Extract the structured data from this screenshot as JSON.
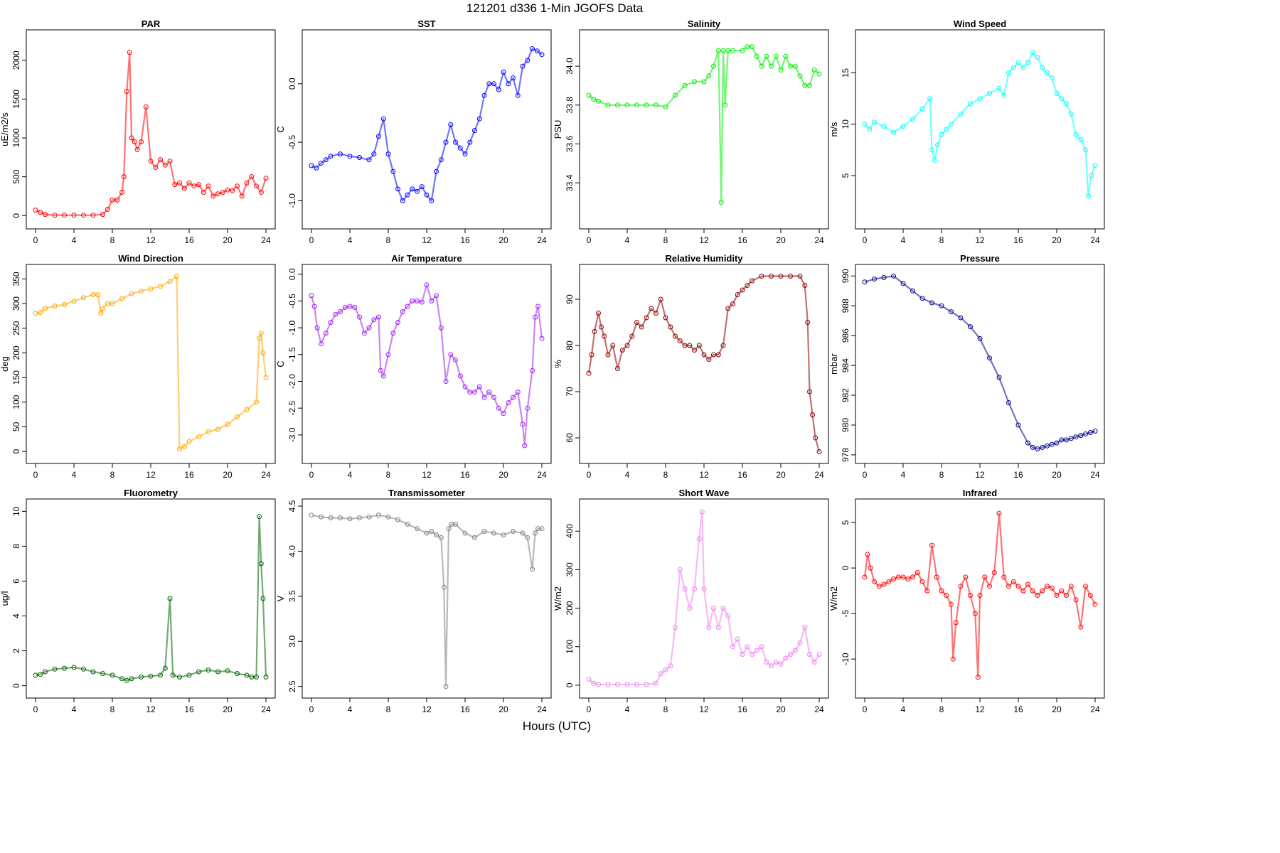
{
  "title": "121201   d336   1-Min  JGOFS Data",
  "x_axis_label": "Hours (UTC)",
  "chart_data": [
    {
      "type": "scatter",
      "title": "PAR",
      "ylabel": "uE/m2/s",
      "color": "#ff0000",
      "xlim": [
        0,
        24
      ],
      "ylim": [
        -80,
        2300
      ],
      "yticks": [
        0,
        500,
        1000,
        1500,
        2000
      ],
      "xticks": [
        0,
        4,
        8,
        12,
        16,
        20,
        24
      ],
      "x": [
        0,
        0.5,
        1,
        2,
        3,
        4,
        5,
        6,
        7,
        7.5,
        8,
        8.5,
        9,
        9.2,
        9.5,
        9.8,
        10,
        10.3,
        10.6,
        11,
        11.5,
        12,
        12.5,
        13,
        13.5,
        14,
        14.5,
        15,
        15.5,
        16,
        16.5,
        17,
        17.5,
        18,
        18.5,
        19,
        19.5,
        20,
        20.5,
        21,
        21.5,
        22,
        22.5,
        23,
        23.5,
        24
      ],
      "y": [
        70,
        40,
        15,
        5,
        5,
        5,
        5,
        5,
        15,
        80,
        200,
        200,
        300,
        500,
        1600,
        2100,
        1000,
        950,
        850,
        950,
        1400,
        700,
        620,
        720,
        650,
        700,
        400,
        420,
        350,
        420,
        380,
        400,
        300,
        380,
        250,
        280,
        300,
        330,
        320,
        380,
        250,
        420,
        500,
        380,
        300,
        480
      ]
    },
    {
      "type": "scatter",
      "title": "SST",
      "ylabel": "C",
      "color": "#0000ff",
      "xlim": [
        0,
        24
      ],
      "ylim": [
        -1.18,
        0.4
      ],
      "yticks": [
        -1.0,
        -0.5,
        0.0
      ],
      "xticks": [
        0,
        4,
        8,
        12,
        16,
        20,
        24
      ],
      "x": [
        0,
        0.5,
        1,
        1.5,
        2,
        3,
        4,
        5,
        6,
        6.5,
        7,
        7.5,
        8,
        8.5,
        9,
        9.5,
        10,
        10.5,
        11,
        11.5,
        12,
        12.5,
        13,
        13.5,
        14,
        14.5,
        15,
        15.5,
        16,
        16.5,
        17,
        17.5,
        18,
        18.5,
        19,
        19.5,
        20,
        20.5,
        21,
        21.5,
        22,
        22.5,
        23,
        23.5,
        24
      ],
      "y": [
        -0.7,
        -0.72,
        -0.68,
        -0.65,
        -0.62,
        -0.6,
        -0.62,
        -0.63,
        -0.65,
        -0.6,
        -0.45,
        -0.3,
        -0.6,
        -0.75,
        -0.9,
        -1.0,
        -0.95,
        -0.9,
        -0.92,
        -0.88,
        -0.95,
        -1.0,
        -0.75,
        -0.65,
        -0.5,
        -0.35,
        -0.5,
        -0.55,
        -0.6,
        -0.5,
        -0.4,
        -0.3,
        -0.1,
        0.0,
        0.0,
        -0.05,
        0.1,
        0.0,
        0.05,
        -0.1,
        0.15,
        0.2,
        0.3,
        0.28,
        0.25
      ]
    },
    {
      "type": "scatter",
      "title": "Salinity",
      "ylabel": "PSU",
      "color": "#00ee00",
      "xlim": [
        0,
        24
      ],
      "ylim": [
        33.2,
        34.15
      ],
      "yticks": [
        33.4,
        33.6,
        33.8,
        34.0
      ],
      "xticks": [
        0,
        4,
        8,
        12,
        16,
        20,
        24
      ],
      "x": [
        0,
        0.5,
        1,
        2,
        3,
        4,
        5,
        6,
        7,
        8,
        9,
        10,
        11,
        12,
        12.5,
        13,
        13.5,
        13.8,
        14,
        14.2,
        14.5,
        15,
        16,
        16.5,
        17,
        17.5,
        18,
        18.5,
        19,
        19.5,
        20,
        20.5,
        21,
        21.5,
        22,
        22.5,
        23,
        23.5,
        24
      ],
      "y": [
        33.85,
        33.83,
        33.82,
        33.8,
        33.8,
        33.8,
        33.8,
        33.8,
        33.8,
        33.79,
        33.85,
        33.9,
        33.92,
        33.92,
        33.95,
        34.0,
        34.08,
        33.3,
        34.08,
        33.8,
        34.08,
        34.08,
        34.08,
        34.1,
        34.1,
        34.05,
        34.0,
        34.05,
        34.0,
        34.05,
        33.98,
        34.05,
        34.0,
        34.0,
        33.95,
        33.9,
        33.9,
        33.98,
        33.96
      ]
    },
    {
      "type": "scatter",
      "title": "Wind Speed",
      "ylabel": "m/s",
      "color": "#00ffff",
      "xlim": [
        0,
        24
      ],
      "ylim": [
        0.5,
        18.5
      ],
      "yticks": [
        5,
        10,
        15
      ],
      "xticks": [
        0,
        4,
        8,
        12,
        16,
        20,
        24
      ],
      "x": [
        0,
        0.5,
        1,
        2,
        3,
        4,
        5,
        6,
        6.8,
        7,
        7.3,
        7.6,
        8,
        8.5,
        9,
        10,
        11,
        12,
        13,
        14,
        14.5,
        15,
        15.5,
        16,
        16.5,
        17,
        17.5,
        18,
        18.5,
        19,
        19.5,
        20,
        20.5,
        21,
        21.5,
        22,
        22.5,
        23,
        23.3,
        23.6,
        24
      ],
      "y": [
        10,
        9.5,
        10.2,
        9.8,
        9.2,
        9.8,
        10.5,
        11.5,
        12.5,
        7.5,
        6.5,
        8,
        9,
        9.5,
        10,
        11,
        12,
        12.5,
        13,
        13.5,
        12.8,
        15,
        15.5,
        16,
        15.5,
        16,
        17,
        16.5,
        15.5,
        15,
        14.5,
        13,
        12.5,
        12,
        11,
        9,
        8.5,
        7.5,
        3,
        5,
        6
      ]
    },
    {
      "type": "scatter",
      "title": "Wind Direction",
      "ylabel": "deg",
      "color": "#ffa500",
      "xlim": [
        0,
        24
      ],
      "ylim": [
        -10,
        365
      ],
      "yticks": [
        0,
        50,
        100,
        150,
        200,
        250,
        300,
        350
      ],
      "xticks": [
        0,
        4,
        8,
        12,
        16,
        20,
        24
      ],
      "x": [
        0,
        0.5,
        1,
        2,
        3,
        4,
        5,
        6,
        6.5,
        6.8,
        7,
        7.5,
        8,
        9,
        10,
        11,
        12,
        13,
        14,
        14.7,
        15,
        15.5,
        16,
        17,
        18,
        19,
        20,
        21,
        22,
        23,
        23.3,
        23.5,
        23.7,
        24
      ],
      "y": [
        280,
        282,
        290,
        295,
        298,
        305,
        312,
        318,
        318,
        280,
        290,
        300,
        300,
        310,
        320,
        325,
        330,
        335,
        345,
        355,
        5,
        10,
        20,
        30,
        40,
        45,
        55,
        70,
        85,
        100,
        230,
        240,
        200,
        150
      ]
    },
    {
      "type": "scatter",
      "title": "Air Temperature",
      "ylabel": "C",
      "color": "#a020f0",
      "xlim": [
        0,
        24
      ],
      "ylim": [
        -3.4,
        0.05
      ],
      "yticks": [
        -3.0,
        -2.5,
        -2.0,
        -1.5,
        -1.0,
        -0.5,
        0.0
      ],
      "xticks": [
        0,
        4,
        8,
        12,
        16,
        20,
        24
      ],
      "x": [
        0,
        0.3,
        0.6,
        1,
        1.5,
        2,
        2.5,
        3,
        3.5,
        4,
        4.5,
        5,
        5.5,
        6,
        6.5,
        7,
        7.2,
        7.5,
        8,
        8.5,
        9,
        9.5,
        10,
        10.5,
        11,
        11.5,
        12,
        12.5,
        13,
        13.5,
        14,
        14.5,
        15,
        15.5,
        16,
        16.5,
        17,
        17.5,
        18,
        18.5,
        19,
        19.5,
        20,
        20.5,
        21,
        21.5,
        22,
        22.2,
        22.5,
        23,
        23.3,
        23.6,
        24
      ],
      "y": [
        -0.4,
        -0.6,
        -1.0,
        -1.3,
        -1.1,
        -0.9,
        -0.75,
        -0.7,
        -0.62,
        -0.6,
        -0.62,
        -0.8,
        -1.1,
        -1.0,
        -0.85,
        -0.8,
        -1.8,
        -1.9,
        -1.5,
        -1.1,
        -0.9,
        -0.7,
        -0.6,
        -0.5,
        -0.5,
        -0.52,
        -0.2,
        -0.5,
        -0.4,
        -1.0,
        -2.0,
        -1.5,
        -1.6,
        -1.9,
        -2.1,
        -2.2,
        -2.2,
        -2.1,
        -2.3,
        -2.2,
        -2.3,
        -2.5,
        -2.6,
        -2.4,
        -2.3,
        -2.2,
        -2.8,
        -3.2,
        -2.5,
        -1.8,
        -0.8,
        -0.6,
        -1.2
      ]
    },
    {
      "type": "scatter",
      "title": "Relative Humidity",
      "ylabel": "%",
      "color": "#8b0000",
      "xlim": [
        0,
        24
      ],
      "ylim": [
        56,
        96
      ],
      "yticks": [
        60,
        70,
        80,
        90
      ],
      "xticks": [
        0,
        4,
        8,
        12,
        16,
        20,
        24
      ],
      "x": [
        0,
        0.3,
        0.6,
        1,
        1.3,
        1.6,
        2,
        2.5,
        3,
        3.5,
        4,
        4.5,
        5,
        5.5,
        6,
        6.5,
        7,
        7.5,
        8,
        8.5,
        9,
        9.5,
        10,
        10.5,
        11,
        11.5,
        12,
        12.5,
        13,
        13.5,
        14,
        14.5,
        15,
        15.5,
        16,
        16.5,
        17,
        18,
        19,
        20,
        21,
        22,
        22.5,
        22.8,
        23,
        23.3,
        23.6,
        24
      ],
      "y": [
        74,
        78,
        83,
        87,
        84,
        82,
        78,
        80,
        75,
        79,
        80,
        82,
        85,
        84,
        86,
        88,
        87,
        90,
        86,
        84,
        82,
        81,
        80,
        80,
        79,
        80,
        78,
        77,
        78,
        78,
        80,
        88,
        89,
        91,
        92,
        93,
        94,
        95,
        95,
        95,
        95,
        95,
        93,
        85,
        70,
        65,
        60,
        57
      ]
    },
    {
      "type": "scatter",
      "title": "Pressure",
      "ylabel": "mbar",
      "color": "#00008b",
      "xlim": [
        0,
        24
      ],
      "ylim": [
        977.9,
        990.3
      ],
      "yticks": [
        978,
        980,
        982,
        984,
        986,
        988,
        990
      ],
      "xticks": [
        0,
        4,
        8,
        12,
        16,
        20,
        24
      ],
      "x": [
        0,
        1,
        2,
        3,
        4,
        5,
        6,
        7,
        8,
        9,
        10,
        11,
        12,
        13,
        14,
        15,
        16,
        17,
        17.5,
        18,
        18.5,
        19,
        19.5,
        20,
        20.5,
        21,
        21.5,
        22,
        22.5,
        23,
        23.5,
        24
      ],
      "y": [
        989.6,
        989.8,
        989.9,
        990.0,
        989.5,
        989.0,
        988.5,
        988.2,
        988.0,
        987.6,
        987.2,
        986.6,
        985.8,
        984.5,
        983.2,
        981.5,
        980.0,
        978.8,
        978.5,
        978.4,
        978.5,
        978.6,
        978.7,
        978.8,
        979.0,
        979.0,
        979.1,
        979.2,
        979.3,
        979.4,
        979.5,
        979.6
      ]
    },
    {
      "type": "scatter",
      "title": "Fluorometry",
      "ylabel": "ug/l",
      "color": "#006400",
      "xlim": [
        0,
        24
      ],
      "ylim": [
        -0.3,
        10.3
      ],
      "yticks": [
        0,
        2,
        4,
        6,
        8,
        10
      ],
      "xticks": [
        0,
        4,
        8,
        12,
        16,
        20,
        24
      ],
      "x": [
        0,
        0.5,
        1,
        2,
        3,
        4,
        5,
        6,
        7,
        8,
        9,
        9.5,
        10,
        11,
        12,
        13,
        13.5,
        14,
        14.3,
        15,
        16,
        17,
        18,
        19,
        20,
        21,
        22,
        22.5,
        23,
        23.3,
        23.5,
        23.7,
        24
      ],
      "y": [
        0.6,
        0.65,
        0.8,
        0.95,
        1.0,
        1.05,
        0.95,
        0.8,
        0.7,
        0.6,
        0.4,
        0.3,
        0.4,
        0.5,
        0.55,
        0.6,
        1.0,
        5.0,
        0.6,
        0.5,
        0.6,
        0.8,
        0.9,
        0.8,
        0.85,
        0.7,
        0.6,
        0.5,
        0.5,
        9.7,
        7.0,
        5.0,
        0.5
      ]
    },
    {
      "type": "scatter",
      "title": "Transmissometer",
      "ylabel": "V",
      "color": "#808080",
      "xlim": [
        0,
        24
      ],
      "ylim": [
        2.45,
        4.5
      ],
      "yticks": [
        2.5,
        3.0,
        3.5,
        4.0,
        4.5
      ],
      "xticks": [
        0,
        4,
        8,
        12,
        16,
        20,
        24
      ],
      "x": [
        0,
        1,
        2,
        3,
        4,
        5,
        6,
        7,
        8,
        9,
        10,
        11,
        12,
        12.5,
        13,
        13.5,
        13.8,
        14,
        14.3,
        14.6,
        15,
        16,
        17,
        18,
        19,
        20,
        21,
        22,
        22.5,
        23,
        23.3,
        23.6,
        24
      ],
      "y": [
        4.4,
        4.38,
        4.37,
        4.37,
        4.36,
        4.37,
        4.38,
        4.4,
        4.38,
        4.35,
        4.3,
        4.25,
        4.2,
        4.22,
        4.18,
        4.15,
        3.6,
        2.5,
        4.25,
        4.3,
        4.3,
        4.2,
        4.15,
        4.22,
        4.2,
        4.18,
        4.22,
        4.2,
        4.15,
        3.8,
        4.2,
        4.25,
        4.25
      ]
    },
    {
      "type": "scatter",
      "title": "Short Wave",
      "ylabel": "W/m2",
      "color": "#ee82ee",
      "xlim": [
        0,
        24
      ],
      "ylim": [
        -15,
        465
      ],
      "yticks": [
        0,
        100,
        200,
        300,
        400
      ],
      "xticks": [
        0,
        4,
        8,
        12,
        16,
        20,
        24
      ],
      "x": [
        0,
        0.5,
        1,
        2,
        3,
        4,
        5,
        6,
        7,
        7.5,
        8,
        8.5,
        9,
        9.5,
        10,
        10.5,
        11,
        11.5,
        11.8,
        12,
        12.5,
        13,
        13.5,
        14,
        14.5,
        15,
        15.5,
        16,
        16.5,
        17,
        17.5,
        18,
        18.5,
        19,
        19.5,
        20,
        20.5,
        21,
        21.5,
        22,
        22.5,
        23,
        23.5,
        24
      ],
      "y": [
        15,
        5,
        2,
        2,
        2,
        2,
        2,
        2,
        5,
        30,
        40,
        50,
        150,
        300,
        250,
        200,
        250,
        380,
        450,
        250,
        150,
        200,
        150,
        200,
        180,
        100,
        120,
        80,
        100,
        80,
        90,
        100,
        60,
        50,
        60,
        55,
        70,
        80,
        90,
        110,
        150,
        80,
        60,
        80
      ]
    },
    {
      "type": "scatter",
      "title": "Infrared",
      "ylabel": "W/m2",
      "color": "#ff0000",
      "xlim": [
        0,
        24
      ],
      "ylim": [
        -13.5,
        6.8
      ],
      "yticks": [
        -10,
        -5,
        0,
        5
      ],
      "xticks": [
        0,
        4,
        8,
        12,
        16,
        20,
        24
      ],
      "x": [
        0,
        0.3,
        0.6,
        1,
        1.5,
        2,
        2.5,
        3,
        3.5,
        4,
        4.5,
        5,
        5.5,
        6,
        6.5,
        7,
        7.5,
        8,
        8.5,
        9,
        9.2,
        9.5,
        10,
        10.5,
        11,
        11.5,
        11.8,
        12,
        12.5,
        13,
        13.5,
        14,
        14.5,
        15,
        15.5,
        16,
        16.5,
        17,
        17.5,
        18,
        18.5,
        19,
        19.5,
        20,
        20.5,
        21,
        21.5,
        22,
        22.5,
        23,
        23.5,
        24
      ],
      "y": [
        -1,
        1.5,
        0,
        -1.5,
        -2,
        -1.8,
        -1.5,
        -1.2,
        -1,
        -1,
        -1.2,
        -1,
        -0.5,
        -1.5,
        -2.5,
        2.5,
        -1,
        -2.5,
        -3,
        -4,
        -10,
        -6,
        -2,
        -1,
        -3,
        -5,
        -12,
        -3,
        -1,
        -2,
        -0.5,
        6,
        -1,
        -2,
        -1.5,
        -2,
        -2.5,
        -1.8,
        -2.5,
        -3,
        -2.5,
        -2,
        -2.2,
        -3,
        -2.5,
        -3,
        -2,
        -3.5,
        -6.5,
        -2,
        -3,
        -4
      ]
    }
  ]
}
